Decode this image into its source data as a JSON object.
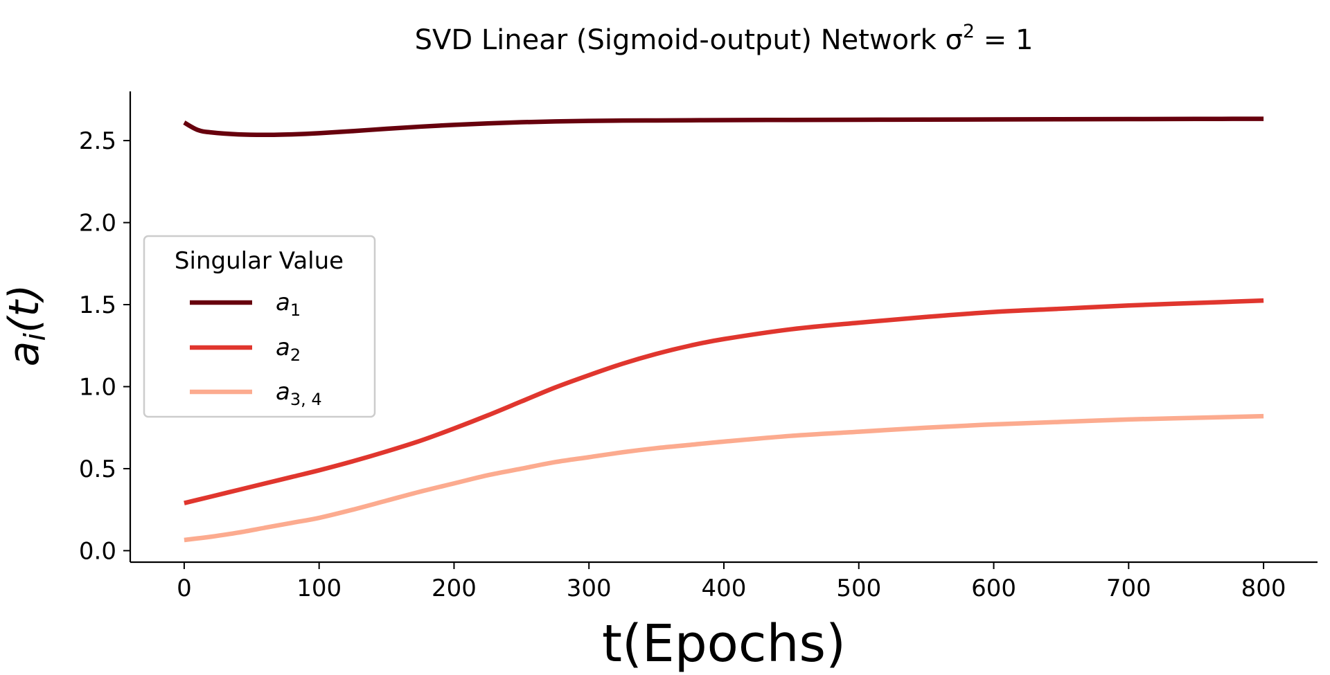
{
  "chart_data": {
    "type": "line",
    "title": "SVD Linear (Sigmoid-output) Network σ",
    "title_sup": "2",
    "title_tail": " = 1",
    "xlabel": "t(Epochs)",
    "ylabel": "a",
    "ylabel_sub": "i",
    "ylabel_tail": "(t)",
    "xlim": [
      -40,
      840
    ],
    "ylim": [
      -0.07,
      2.8
    ],
    "xticks": [
      0,
      100,
      200,
      300,
      400,
      500,
      600,
      700,
      800
    ],
    "xtick_labels": [
      "0",
      "100",
      "200",
      "300",
      "400",
      "500",
      "600",
      "700",
      "800"
    ],
    "yticks": [
      0.0,
      0.5,
      1.0,
      1.5,
      2.0,
      2.5
    ],
    "ytick_labels": [
      "0.0",
      "0.5",
      "1.0",
      "1.5",
      "2.0",
      "2.5"
    ],
    "grid": false,
    "legend": {
      "title": "Singular Value",
      "placement": "center-left"
    },
    "x": [
      0,
      10,
      20,
      40,
      60,
      80,
      100,
      125,
      150,
      175,
      200,
      225,
      250,
      275,
      300,
      325,
      350,
      375,
      400,
      450,
      500,
      550,
      600,
      650,
      700,
      750,
      800
    ],
    "series": [
      {
        "name": "a",
        "name_sub": "1",
        "color": "#67000d",
        "values": [
          2.61,
          2.565,
          2.55,
          2.538,
          2.535,
          2.538,
          2.545,
          2.558,
          2.572,
          2.585,
          2.596,
          2.605,
          2.612,
          2.617,
          2.62,
          2.622,
          2.623,
          2.624,
          2.625,
          2.626,
          2.627,
          2.628,
          2.629,
          2.63,
          2.631,
          2.632,
          2.633
        ]
      },
      {
        "name": "a",
        "name_sub": "2",
        "color": "#e0362e",
        "values": [
          0.29,
          0.31,
          0.33,
          0.37,
          0.41,
          0.45,
          0.49,
          0.545,
          0.605,
          0.67,
          0.745,
          0.825,
          0.91,
          0.995,
          1.07,
          1.14,
          1.2,
          1.25,
          1.29,
          1.35,
          1.39,
          1.425,
          1.455,
          1.475,
          1.495,
          1.51,
          1.525
        ]
      },
      {
        "name": "a",
        "name_sub": "3, 4",
        "color": "#fcab8f",
        "values": [
          0.065,
          0.075,
          0.085,
          0.11,
          0.14,
          0.17,
          0.2,
          0.25,
          0.305,
          0.36,
          0.41,
          0.46,
          0.5,
          0.54,
          0.57,
          0.6,
          0.625,
          0.645,
          0.665,
          0.7,
          0.725,
          0.75,
          0.77,
          0.785,
          0.8,
          0.81,
          0.82
        ]
      }
    ]
  }
}
